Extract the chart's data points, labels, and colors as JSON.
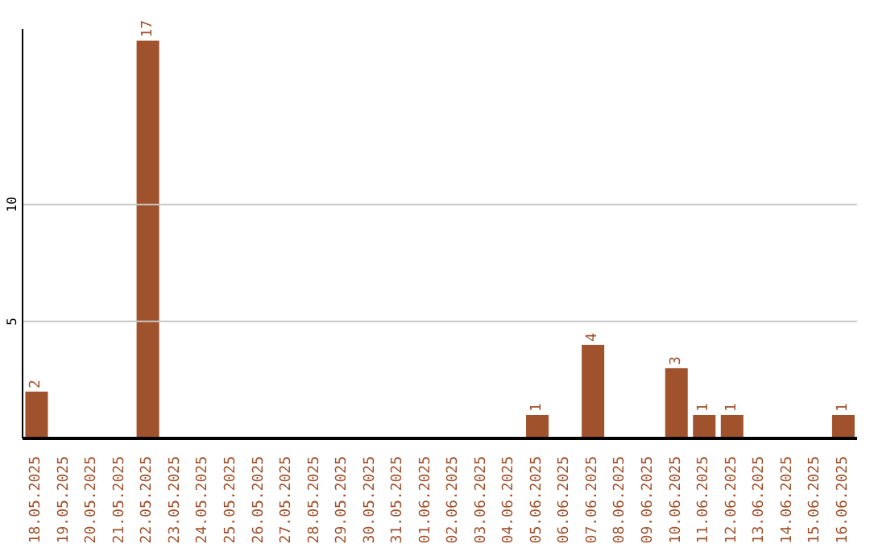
{
  "chart_data": {
    "type": "bar",
    "categories": [
      "18.05.2025",
      "19.05.2025",
      "20.05.2025",
      "21.05.2025",
      "22.05.2025",
      "23.05.2025",
      "24.05.2025",
      "25.05.2025",
      "26.05.2025",
      "27.05.2025",
      "28.05.2025",
      "29.05.2025",
      "30.05.2025",
      "31.05.2025",
      "01.06.2025",
      "02.06.2025",
      "03.06.2025",
      "04.06.2025",
      "05.06.2025",
      "06.06.2025",
      "07.06.2025",
      "08.06.2025",
      "09.06.2025",
      "10.06.2025",
      "11.06.2025",
      "12.06.2025",
      "13.06.2025",
      "14.06.2025",
      "15.06.2025",
      "16.06.2025"
    ],
    "values": [
      2,
      0,
      0,
      0,
      17,
      0,
      0,
      0,
      0,
      0,
      0,
      0,
      0,
      0,
      0,
      0,
      0,
      0,
      1,
      0,
      4,
      0,
      0,
      3,
      1,
      1,
      0,
      0,
      0,
      1
    ],
    "value_labels": [
      "2",
      null,
      null,
      null,
      "17",
      null,
      null,
      null,
      null,
      null,
      null,
      null,
      null,
      null,
      null,
      null,
      null,
      null,
      "1",
      null,
      "4",
      null,
      null,
      "3",
      "1",
      "1",
      null,
      null,
      null,
      "1"
    ],
    "color": "#a0522d",
    "ylim": [
      0,
      17.5
    ],
    "yticks": [
      5,
      10
    ],
    "grid": "y"
  }
}
